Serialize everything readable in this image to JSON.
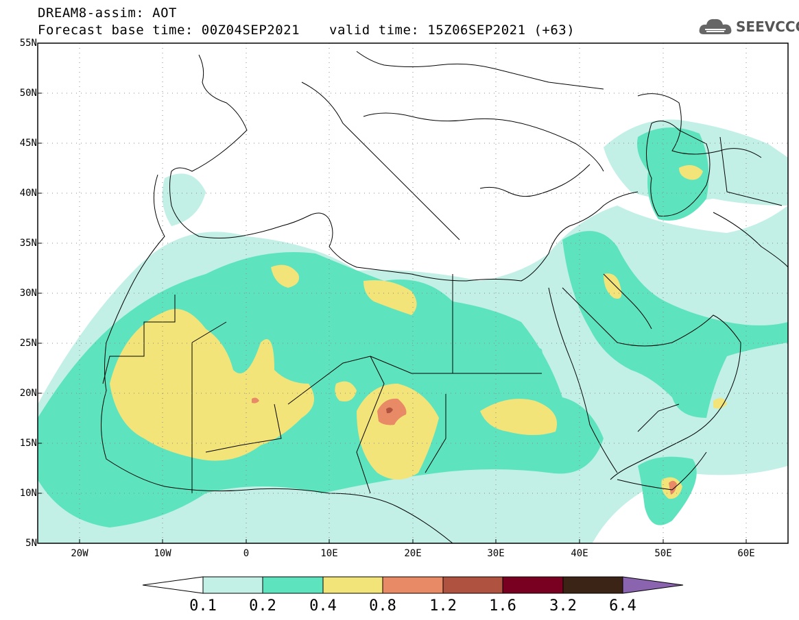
{
  "header": {
    "line1": "DREAM8-assim: AOT",
    "base_time": "Forecast base time: 00Z04SEP2021",
    "valid_time": "valid time: 15Z06SEP2021 (+63)"
  },
  "logo": {
    "text": "SEEVCCC",
    "icon": "cloud-icon"
  },
  "map": {
    "lat_labels": [
      "55N",
      "50N",
      "45N",
      "40N",
      "35N",
      "30N",
      "25N",
      "20N",
      "15N",
      "10N",
      "5N"
    ],
    "lon_labels": [
      "20W",
      "10W",
      "0",
      "10E",
      "20E",
      "30E",
      "40E",
      "50E",
      "60E"
    ],
    "lon_range": [
      -25,
      65
    ],
    "lat_range": [
      5,
      55
    ],
    "gridlines": "dotted"
  },
  "colorbar": {
    "labels": [
      "0.1",
      "0.2",
      "0.4",
      "0.8",
      "1.2",
      "1.6",
      "3.2",
      "6.4"
    ],
    "colors": {
      "c0_1": "#c2f0e6",
      "c0_2": "#5ee3bf",
      "c0_4": "#f3e47a",
      "c0_8": "#e98a66",
      "c1_2": "#b05240",
      "c1_6": "#7a0022",
      "c3_2": "#3b2415",
      "c6_4": "#8b64b0"
    }
  }
}
